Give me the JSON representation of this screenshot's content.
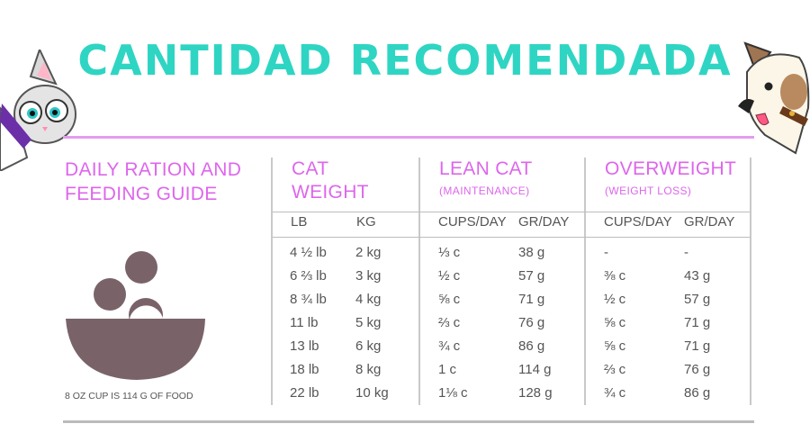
{
  "title": "CANTIDAD RECOMENDADA",
  "guide_title": "DAILY RATION AND FEEDING GUIDE",
  "footnote": "8 OZ CUP IS 114 G OF FOOD",
  "columns": {
    "cat": {
      "title": "CAT WEIGHT",
      "sub": ""
    },
    "lean": {
      "title": "LEAN CAT",
      "sub": "(MAINTENANCE)"
    },
    "over": {
      "title": "OVERWEIGHT",
      "sub": "(WEIGHT LOSS)"
    }
  },
  "subheaders": [
    "LB",
    "KG",
    "CUPS/DAY",
    "GR/DAY",
    "CUPS/DAY",
    "GR/DAY"
  ],
  "rows": [
    {
      "lb": "4 ½ lb",
      "kg": "2 kg",
      "lean_cups": "⅓ c",
      "lean_gr": "38 g",
      "over_cups": "-",
      "over_gr": "-"
    },
    {
      "lb": "6 ⅔ lb",
      "kg": "3 kg",
      "lean_cups": "½ c",
      "lean_gr": "57 g",
      "over_cups": "⅜ c",
      "over_gr": "43 g"
    },
    {
      "lb": "8 ¾ lb",
      "kg": "4 kg",
      "lean_cups": "⅝ c",
      "lean_gr": "71 g",
      "over_cups": "½ c",
      "over_gr": "57 g"
    },
    {
      "lb": "11 lb",
      "kg": "5 kg",
      "lean_cups": "⅔ c",
      "lean_gr": "76 g",
      "over_cups": "⅝ c",
      "over_gr": "71 g"
    },
    {
      "lb": "13 lb",
      "kg": "6 kg",
      "lean_cups": "¾ c",
      "lean_gr": "86 g",
      "over_cups": "⅝ c",
      "over_gr": "71 g"
    },
    {
      "lb": "18 lb",
      "kg": "8 kg",
      "lean_cups": "1 c",
      "lean_gr": "114 g",
      "over_cups": "⅔ c",
      "over_gr": "76 g"
    },
    {
      "lb": "22 lb",
      "kg": "10 kg",
      "lean_cups": "1⅛ c",
      "lean_gr": "128 g",
      "over_cups": "¾ c",
      "over_gr": "86 g"
    }
  ],
  "colors": {
    "title": "#2fd5c3",
    "heading": "#dd66ec",
    "bowl": "#7a6368",
    "kibble": "#7a6368"
  },
  "icons": {
    "bowl": "food-bowl-icon",
    "cat": "cat-mascot",
    "dog": "dog-mascot"
  }
}
